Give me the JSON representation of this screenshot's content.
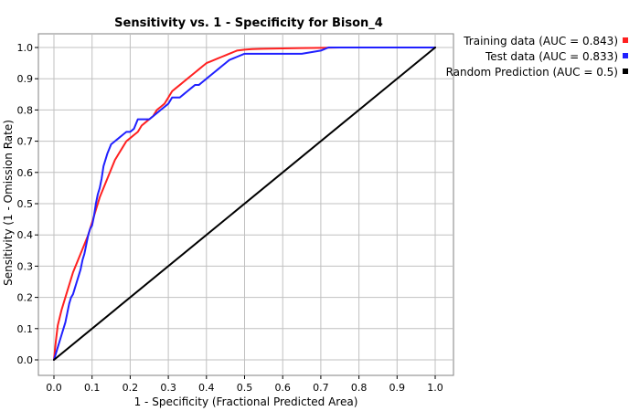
{
  "chart_data": {
    "type": "line",
    "title": "Sensitivity vs. 1 - Specificity for Bison_4",
    "xlabel": "1 - Specificity  (Fractional Predicted Area)",
    "ylabel": "Sensitivity  (1 - Omission Rate)",
    "xlim": [
      0,
      1
    ],
    "ylim": [
      0,
      1
    ],
    "x_ticks": [
      "0.0",
      "0.1",
      "0.2",
      "0.3",
      "0.4",
      "0.5",
      "0.6",
      "0.7",
      "0.8",
      "0.9",
      "1.0"
    ],
    "y_ticks": [
      "0.0",
      "0.1",
      "0.2",
      "0.3",
      "0.4",
      "0.5",
      "0.6",
      "0.7",
      "0.8",
      "0.9",
      "1.0"
    ],
    "grid": true,
    "legend_position": "right",
    "series": [
      {
        "name": "Training data (AUC = 0.843)",
        "color": "#ff2020",
        "x": [
          0.0,
          0.005,
          0.01,
          0.02,
          0.03,
          0.04,
          0.05,
          0.06,
          0.07,
          0.08,
          0.09,
          0.1,
          0.11,
          0.12,
          0.13,
          0.14,
          0.15,
          0.16,
          0.17,
          0.18,
          0.19,
          0.2,
          0.21,
          0.22,
          0.23,
          0.24,
          0.25,
          0.26,
          0.27,
          0.28,
          0.29,
          0.3,
          0.31,
          0.32,
          0.33,
          0.34,
          0.35,
          0.36,
          0.37,
          0.38,
          0.39,
          0.4,
          0.41,
          0.42,
          0.43,
          0.44,
          0.45,
          0.46,
          0.47,
          0.48,
          0.5,
          0.52,
          0.55,
          0.6,
          0.65,
          0.7,
          0.75,
          0.8,
          0.9,
          1.0
        ],
        "y": [
          0.0,
          0.06,
          0.11,
          0.16,
          0.2,
          0.24,
          0.28,
          0.31,
          0.34,
          0.37,
          0.4,
          0.44,
          0.48,
          0.52,
          0.55,
          0.58,
          0.61,
          0.64,
          0.66,
          0.68,
          0.7,
          0.71,
          0.72,
          0.73,
          0.75,
          0.76,
          0.77,
          0.78,
          0.8,
          0.81,
          0.82,
          0.84,
          0.86,
          0.87,
          0.88,
          0.89,
          0.9,
          0.91,
          0.92,
          0.93,
          0.94,
          0.95,
          0.955,
          0.96,
          0.965,
          0.97,
          0.975,
          0.98,
          0.985,
          0.99,
          0.993,
          0.995,
          0.996,
          0.997,
          0.998,
          0.999,
          1.0,
          1.0,
          1.0,
          1.0
        ]
      },
      {
        "name": "Test data (AUC = 0.833)",
        "color": "#2020ff",
        "x": [
          0.0,
          0.005,
          0.01,
          0.015,
          0.02,
          0.025,
          0.03,
          0.035,
          0.04,
          0.045,
          0.05,
          0.055,
          0.06,
          0.065,
          0.07,
          0.075,
          0.08,
          0.085,
          0.09,
          0.095,
          0.1,
          0.105,
          0.11,
          0.115,
          0.12,
          0.125,
          0.13,
          0.14,
          0.15,
          0.16,
          0.17,
          0.18,
          0.19,
          0.2,
          0.21,
          0.22,
          0.23,
          0.24,
          0.25,
          0.26,
          0.27,
          0.28,
          0.29,
          0.3,
          0.31,
          0.32,
          0.33,
          0.34,
          0.35,
          0.36,
          0.37,
          0.38,
          0.39,
          0.4,
          0.41,
          0.42,
          0.43,
          0.44,
          0.45,
          0.46,
          0.48,
          0.5,
          0.55,
          0.6,
          0.65,
          0.7,
          0.72,
          0.8,
          0.9,
          1.0
        ],
        "y": [
          0.0,
          0.02,
          0.04,
          0.06,
          0.08,
          0.1,
          0.12,
          0.15,
          0.18,
          0.2,
          0.21,
          0.23,
          0.25,
          0.27,
          0.29,
          0.32,
          0.34,
          0.37,
          0.4,
          0.42,
          0.43,
          0.46,
          0.5,
          0.53,
          0.55,
          0.58,
          0.62,
          0.66,
          0.69,
          0.7,
          0.71,
          0.72,
          0.73,
          0.73,
          0.74,
          0.77,
          0.77,
          0.77,
          0.77,
          0.78,
          0.79,
          0.8,
          0.81,
          0.82,
          0.84,
          0.84,
          0.84,
          0.85,
          0.86,
          0.87,
          0.88,
          0.88,
          0.89,
          0.9,
          0.91,
          0.92,
          0.93,
          0.94,
          0.95,
          0.96,
          0.97,
          0.98,
          0.98,
          0.98,
          0.98,
          0.99,
          1.0,
          1.0,
          1.0,
          1.0
        ]
      },
      {
        "name": "Random Prediction (AUC = 0.5)",
        "color": "#000000",
        "x": [
          0.0,
          1.0
        ],
        "y": [
          0.0,
          1.0
        ]
      }
    ]
  }
}
